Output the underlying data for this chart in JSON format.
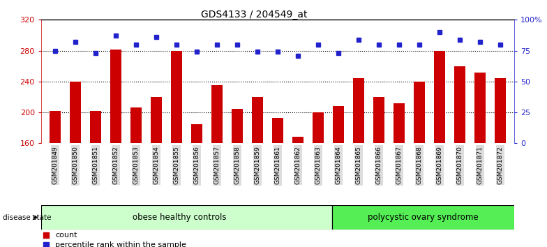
{
  "title": "GDS4133 / 204549_at",
  "samples": [
    "GSM201849",
    "GSM201850",
    "GSM201851",
    "GSM201852",
    "GSM201853",
    "GSM201854",
    "GSM201855",
    "GSM201856",
    "GSM201857",
    "GSM201858",
    "GSM201859",
    "GSM201861",
    "GSM201862",
    "GSM201863",
    "GSM201864",
    "GSM201865",
    "GSM201866",
    "GSM201867",
    "GSM201868",
    "GSM201869",
    "GSM201870",
    "GSM201871",
    "GSM201872"
  ],
  "counts": [
    202,
    240,
    202,
    281,
    206,
    220,
    280,
    185,
    235,
    205,
    220,
    193,
    168,
    200,
    208,
    244,
    220,
    212,
    240,
    280,
    260,
    252,
    244
  ],
  "percentile": [
    75,
    82,
    73,
    87,
    80,
    86,
    80,
    74,
    80,
    80,
    74,
    74,
    71,
    80,
    73,
    84,
    80,
    80,
    80,
    90,
    84,
    82,
    80
  ],
  "bar_color": "#cc0000",
  "dot_color": "#2222cc",
  "ylim_left": [
    160,
    320
  ],
  "ylim_right": [
    0,
    100
  ],
  "yticks_left": [
    160,
    200,
    240,
    280,
    320
  ],
  "yticks_right": [
    0,
    25,
    50,
    75,
    100
  ],
  "ytick_labels_right": [
    "0",
    "25",
    "50",
    "75",
    "100%"
  ],
  "grid_lines": [
    200,
    240,
    280
  ],
  "group1_label": "obese healthy controls",
  "group2_label": "polycystic ovary syndrome",
  "group1_count": 14,
  "legend_count_label": "count",
  "legend_pct_label": "percentile rank within the sample",
  "disease_state_label": "disease state",
  "group1_color": "#ccffcc",
  "group2_color": "#55ee55",
  "bar_axis_color": "#cc0000",
  "pct_axis_color": "#2222cc",
  "xlabel_bg": "#dddddd",
  "fig_width": 7.84,
  "fig_height": 3.54,
  "dpi": 100
}
